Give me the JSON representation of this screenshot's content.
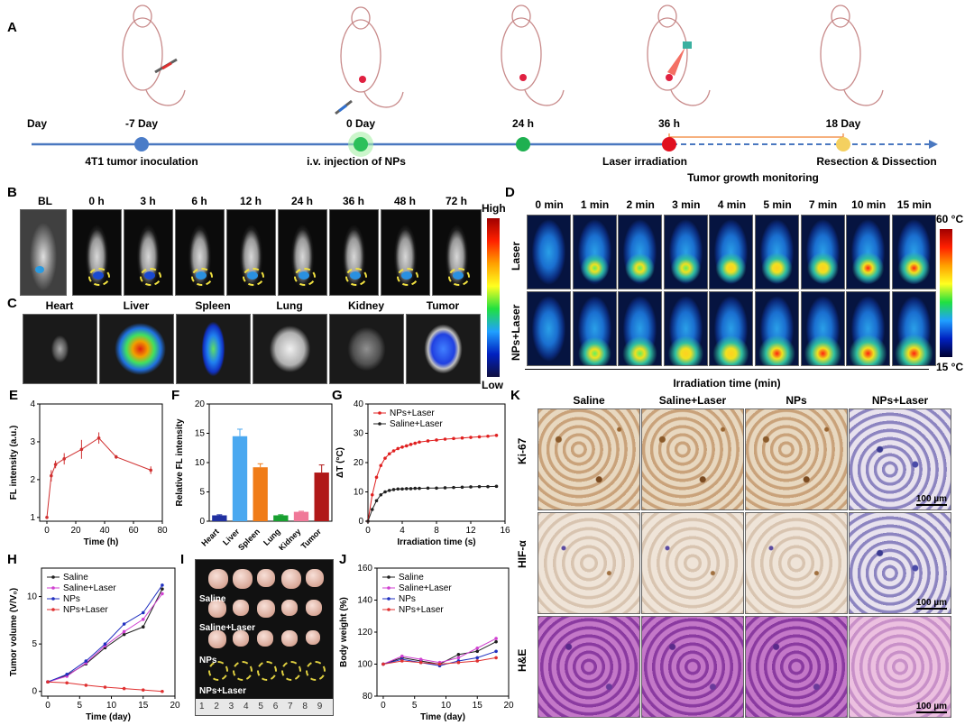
{
  "panel_letters": {
    "A": "A",
    "B": "B",
    "C": "C",
    "D": "D",
    "E": "E",
    "F": "F",
    "G": "G",
    "H": "H",
    "I": "I",
    "J": "J",
    "K": "K"
  },
  "timeline": {
    "day_label": "Day",
    "times": [
      "-7 Day",
      "0 Day",
      "24 h",
      "36 h",
      "18 Day"
    ],
    "events": [
      "4T1 tumor inoculation",
      "i.v. injection of NPs",
      "Laser irradiation",
      "Resection & Dissection"
    ],
    "monitoring": "Tumor growth monitoring",
    "colors": [
      "#4a7cc8",
      "#2cc05a",
      "#1eb050",
      "#e01020",
      "#f4d060"
    ]
  },
  "panel_b": {
    "bl": "BL",
    "times": [
      "0 h",
      "3 h",
      "6 h",
      "12 h",
      "24 h",
      "36 h",
      "48 h",
      "72 h"
    ],
    "scale_high": "High",
    "scale_low": "Low"
  },
  "panel_c": {
    "organs": [
      "Heart",
      "Liver",
      "Spleen",
      "Lung",
      "Kidney",
      "Tumor"
    ]
  },
  "panel_d": {
    "times": [
      "0 min",
      "1 min",
      "2 min",
      "3 min",
      "4 min",
      "5 min",
      "7 min",
      "10 min",
      "15 min"
    ],
    "rows": [
      "Laser",
      "NPs+Laser"
    ],
    "scale_high": "60 °C",
    "scale_low": "15 °C",
    "xlabel": "Irradiation time (min)"
  },
  "panel_k": {
    "cols": [
      "Saline",
      "Saline+Laser",
      "NPs",
      "NPs+Laser"
    ],
    "rows": [
      "Ki-67",
      "HIF-α",
      "H&E"
    ],
    "scalebar": "100 µm"
  },
  "panel_i": {
    "groups": [
      "Saline",
      "Saline+Laser",
      "NPs",
      "NPs+Laser"
    ],
    "ruler": "1 2 3 4 5 6 7 8 9"
  },
  "chart_data": [
    {
      "id": "E",
      "type": "line",
      "xlabel": "Time (h)",
      "ylabel": "FL intensity (a.u.)",
      "xlim": [
        -5,
        80
      ],
      "ylim": [
        0.9,
        4
      ],
      "xticks": [
        0,
        20,
        40,
        60,
        80
      ],
      "yticks": [
        1,
        2,
        3,
        4
      ],
      "series": [
        {
          "name": "FL",
          "color": "#d03030",
          "x": [
            0,
            3,
            6,
            12,
            24,
            36,
            48,
            72
          ],
          "y": [
            1.0,
            2.1,
            2.4,
            2.55,
            2.8,
            3.1,
            2.6,
            2.25
          ],
          "err": [
            0,
            0.15,
            0.1,
            0.15,
            0.25,
            0.15,
            0.05,
            0.1
          ]
        }
      ]
    },
    {
      "id": "F",
      "type": "bar",
      "xlabel": "",
      "ylabel": "Relative FL intensity",
      "ylim": [
        0,
        20
      ],
      "yticks": [
        0,
        5,
        10,
        15,
        20
      ],
      "categories": [
        "Heart",
        "Liver",
        "Spleen",
        "Lung",
        "Kidney",
        "Tumor"
      ],
      "values": [
        1.0,
        14.5,
        9.2,
        1.0,
        1.6,
        8.3
      ],
      "err": [
        0.1,
        1.2,
        0.6,
        0.1,
        0.1,
        1.3
      ],
      "colors": [
        "#2030a0",
        "#4aa8f0",
        "#f07c18",
        "#18a030",
        "#f07898",
        "#b01818"
      ]
    },
    {
      "id": "G",
      "type": "line",
      "xlabel": "Irradiation time (s)",
      "ylabel": "ΔT (°C)",
      "xlim": [
        0,
        16
      ],
      "ylim": [
        0,
        40
      ],
      "xticks": [
        0,
        4,
        8,
        12,
        16
      ],
      "yticks": [
        0,
        10,
        20,
        30,
        40
      ],
      "series": [
        {
          "name": "NPs+Laser",
          "color": "#e02020",
          "x": [
            0,
            0.5,
            1,
            1.5,
            2,
            2.5,
            3,
            3.5,
            4,
            4.5,
            5,
            5.5,
            6,
            7,
            8,
            9,
            10,
            11,
            12,
            13,
            14,
            15
          ],
          "y": [
            0,
            9,
            15,
            19,
            21.5,
            23,
            24,
            24.8,
            25.3,
            25.7,
            26.2,
            26.6,
            27,
            27.4,
            27.7,
            28,
            28.2,
            28.4,
            28.6,
            28.8,
            29,
            29.3
          ]
        },
        {
          "name": "Saline+Laser",
          "color": "#202020",
          "x": [
            0,
            0.5,
            1,
            1.5,
            2,
            2.5,
            3,
            3.5,
            4,
            4.5,
            5,
            5.5,
            6,
            7,
            8,
            9,
            10,
            11,
            12,
            13,
            14,
            15
          ],
          "y": [
            0,
            4,
            7,
            9,
            10,
            10.5,
            10.8,
            11,
            11,
            11.1,
            11.1,
            11.2,
            11.2,
            11.3,
            11.3,
            11.4,
            11.5,
            11.6,
            11.7,
            11.8,
            11.8,
            11.9
          ]
        }
      ]
    },
    {
      "id": "H",
      "type": "line",
      "xlabel": "Time (day)",
      "ylabel": "Tumor volume (V/V₀)",
      "xlim": [
        -1,
        20
      ],
      "ylim": [
        -0.5,
        13
      ],
      "xticks": [
        0,
        5,
        10,
        15,
        20
      ],
      "yticks": [
        0,
        5,
        10
      ],
      "series": [
        {
          "name": "Saline",
          "color": "#202020",
          "x": [
            0,
            3,
            6,
            9,
            12,
            15,
            18
          ],
          "y": [
            1,
            1.7,
            2.9,
            4.6,
            6.0,
            6.8,
            10.8
          ]
        },
        {
          "name": "Saline+Laser",
          "color": "#d040d0",
          "x": [
            0,
            3,
            6,
            9,
            12,
            15,
            18
          ],
          "y": [
            1,
            1.6,
            3.0,
            4.8,
            6.3,
            7.6,
            10.3
          ]
        },
        {
          "name": "NPs",
          "color": "#2030c0",
          "x": [
            0,
            3,
            6,
            9,
            12,
            15,
            18
          ],
          "y": [
            1,
            1.8,
            3.2,
            5.0,
            7.1,
            8.3,
            11.2
          ]
        },
        {
          "name": "NPs+Laser",
          "color": "#e03030",
          "x": [
            0,
            3,
            6,
            9,
            12,
            15,
            18
          ],
          "y": [
            1,
            0.9,
            0.65,
            0.45,
            0.3,
            0.15,
            0.0
          ]
        }
      ]
    },
    {
      "id": "J",
      "type": "line",
      "xlabel": "Time (day)",
      "ylabel": "Body weight (%)",
      "xlim": [
        -1,
        20
      ],
      "ylim": [
        80,
        160
      ],
      "xticks": [
        0,
        5,
        10,
        15,
        20
      ],
      "yticks": [
        80,
        100,
        120,
        140,
        160
      ],
      "series": [
        {
          "name": "Saline",
          "color": "#202020",
          "x": [
            0,
            3,
            6,
            9,
            12,
            15,
            18
          ],
          "y": [
            100,
            104,
            102,
            100,
            106,
            108,
            114
          ]
        },
        {
          "name": "Saline+Laser",
          "color": "#d040d0",
          "x": [
            0,
            3,
            6,
            9,
            12,
            15,
            18
          ],
          "y": [
            100,
            105,
            103,
            101,
            104,
            110,
            116
          ]
        },
        {
          "name": "NPs",
          "color": "#2030c0",
          "x": [
            0,
            3,
            6,
            9,
            12,
            15,
            18
          ],
          "y": [
            100,
            103,
            101,
            99,
            102,
            104,
            108
          ]
        },
        {
          "name": "NPs+Laser",
          "color": "#e03030",
          "x": [
            0,
            3,
            6,
            9,
            12,
            15,
            18
          ],
          "y": [
            100,
            102,
            101,
            100,
            101,
            102,
            104
          ]
        }
      ]
    }
  ]
}
